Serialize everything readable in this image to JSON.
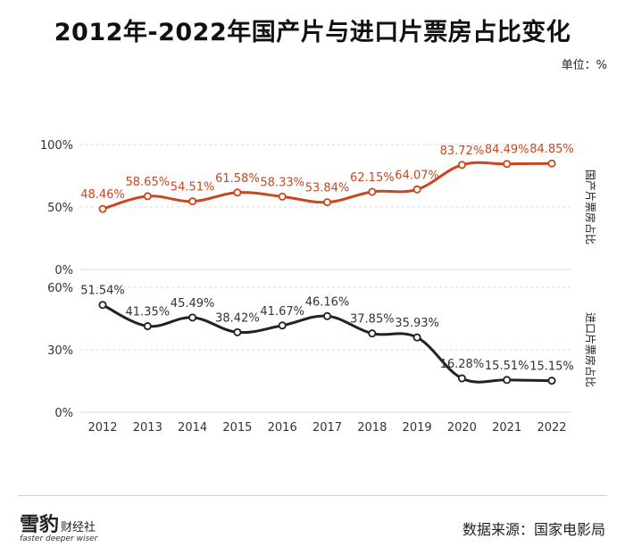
{
  "title": "2012年-2022年国产片与进口片票房占比变化",
  "unit": "单位：%",
  "source": "数据来源：国家电影局",
  "brand": {
    "name": "雪豹",
    "sub": "财经社",
    "tagline": "faster deeper wiser"
  },
  "colors": {
    "domestic": "#c8471f",
    "imported": "#222222",
    "label_domestic": "#c8471f",
    "label_imported": "#333333"
  },
  "chart_data": [
    {
      "type": "line",
      "title": "国产片票房占比",
      "series_label": "国产片票房占比",
      "categories": [
        "2012",
        "2013",
        "2014",
        "2015",
        "2016",
        "2017",
        "2018",
        "2019",
        "2020",
        "2021",
        "2022"
      ],
      "values": [
        48.46,
        58.65,
        54.51,
        61.58,
        58.33,
        53.84,
        62.15,
        64.07,
        83.72,
        84.49,
        84.85
      ],
      "value_labels": [
        "48.46%",
        "58.65%",
        "54.51%",
        "61.58%",
        "58.33%",
        "53.84%",
        "62.15%",
        "64.07%",
        "83.72%",
        "84.49%",
        "84.85%"
      ],
      "ylim": [
        0,
        100
      ],
      "yticks": [
        0,
        50,
        100
      ],
      "ytick_labels": [
        "0%",
        "50%",
        "100%"
      ]
    },
    {
      "type": "line",
      "title": "进口片票房占比",
      "series_label": "进口片票房占比",
      "categories": [
        "2012",
        "2013",
        "2014",
        "2015",
        "2016",
        "2017",
        "2018",
        "2019",
        "2020",
        "2021",
        "2022"
      ],
      "values": [
        51.54,
        41.35,
        45.49,
        38.42,
        41.67,
        46.16,
        37.85,
        35.93,
        16.28,
        15.51,
        15.15
      ],
      "value_labels": [
        "51.54%",
        "41.35%",
        "45.49%",
        "38.42%",
        "41.67%",
        "46.16%",
        "37.85%",
        "35.93%",
        "16.28%",
        "15.51%",
        "15.15%"
      ],
      "ylim": [
        0,
        60
      ],
      "yticks": [
        0,
        30,
        60
      ],
      "ytick_labels": [
        "0%",
        "30%",
        "60%"
      ]
    }
  ]
}
